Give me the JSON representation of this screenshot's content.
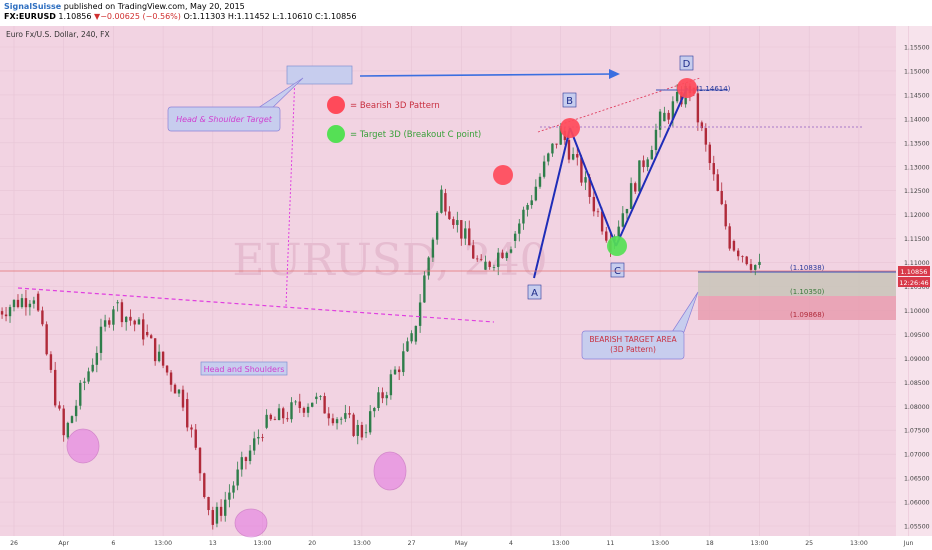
{
  "header": {
    "publisher": "SignalSuisse",
    "published_text": "published on TradingView.com, May 20, 2015",
    "symbol": "FX:EURUSD",
    "last": "1.10856",
    "change": "−0.00625 (−0.56%)",
    "open": "O:1.11303",
    "high": "H:1.11452",
    "low": "L:1.10610",
    "close": "C:1.10856"
  },
  "chart_title": "Euro Fx/U.S. Dollar, 240, FX",
  "watermark": "EURUSD, 240",
  "colors": {
    "background": "#f2d3e2",
    "up_candle": "#2e7d4a",
    "down_candle": "#b02a3a",
    "pattern_line": "#1f2db8",
    "magenta": "#e040e0",
    "red_marker": "#ff4a5a",
    "green_marker": "#55e055",
    "price_line": "#e07070"
  },
  "chart_data": {
    "type": "candlestick",
    "ylim": [
      1.0545,
      1.1595
    ],
    "y_ticks": [
      "1.15500",
      "1.15000",
      "1.14500",
      "1.14000",
      "1.13500",
      "1.13000",
      "1.12500",
      "1.12000",
      "1.11500",
      "1.11000",
      "1.10500",
      "1.10000",
      "1.09500",
      "1.09000",
      "1.08500",
      "1.08000",
      "1.07500",
      "1.07000",
      "1.06500",
      "1.06000",
      "1.05500"
    ],
    "x_ticks": [
      "26",
      "Apr",
      "6",
      "13:00",
      "13",
      "13:00",
      "20",
      "13:00",
      "27",
      "May",
      "4",
      "13:00",
      "11",
      "13:00",
      "18",
      "13:00",
      "25",
      "13:00",
      "Jun"
    ],
    "current_price": "1.10856",
    "current_time": "12:26:46",
    "path_points": [
      [
        "26",
        1.0995
      ],
      [
        "26",
        1.1035
      ],
      [
        "Apr",
        1.0735
      ],
      [
        "6",
        1.1015
      ],
      [
        "13:00",
        1.0955
      ],
      [
        "13:00",
        1.0815
      ],
      [
        "13",
        1.0555
      ],
      [
        "13:00",
        1.0755
      ],
      [
        "20",
        1.0815
      ],
      [
        "13:00",
        1.0745
      ],
      [
        "27",
        1.0935
      ],
      [
        "May",
        1.1245
      ],
      [
        "May",
        1.1085
      ],
      [
        "4",
        1.1145
      ],
      [
        "13:00",
        1.1375
      ],
      [
        "11",
        1.1145
      ],
      [
        "13:00",
        1.1395
      ],
      [
        "18",
        1.1465
      ],
      [
        "18",
        1.1145
      ],
      [
        "13:00",
        1.1086
      ]
    ],
    "annotations": {
      "legend_red": "= Bearish 3D Pattern",
      "legend_green": "= Target 3D (Breakout C point)",
      "hs_target": "Head & Shoulder Target",
      "hs_label": "Head and Shoulders",
      "bearish_area": "BEARISH TARGET AREA\n(3D Pattern)",
      "points": [
        "A",
        "B",
        "C",
        "D"
      ],
      "d_price": "(1.14614)",
      "level_1": "(1.10838)",
      "level_2": "(1.10350)",
      "level_3": "(1.09868)"
    }
  }
}
